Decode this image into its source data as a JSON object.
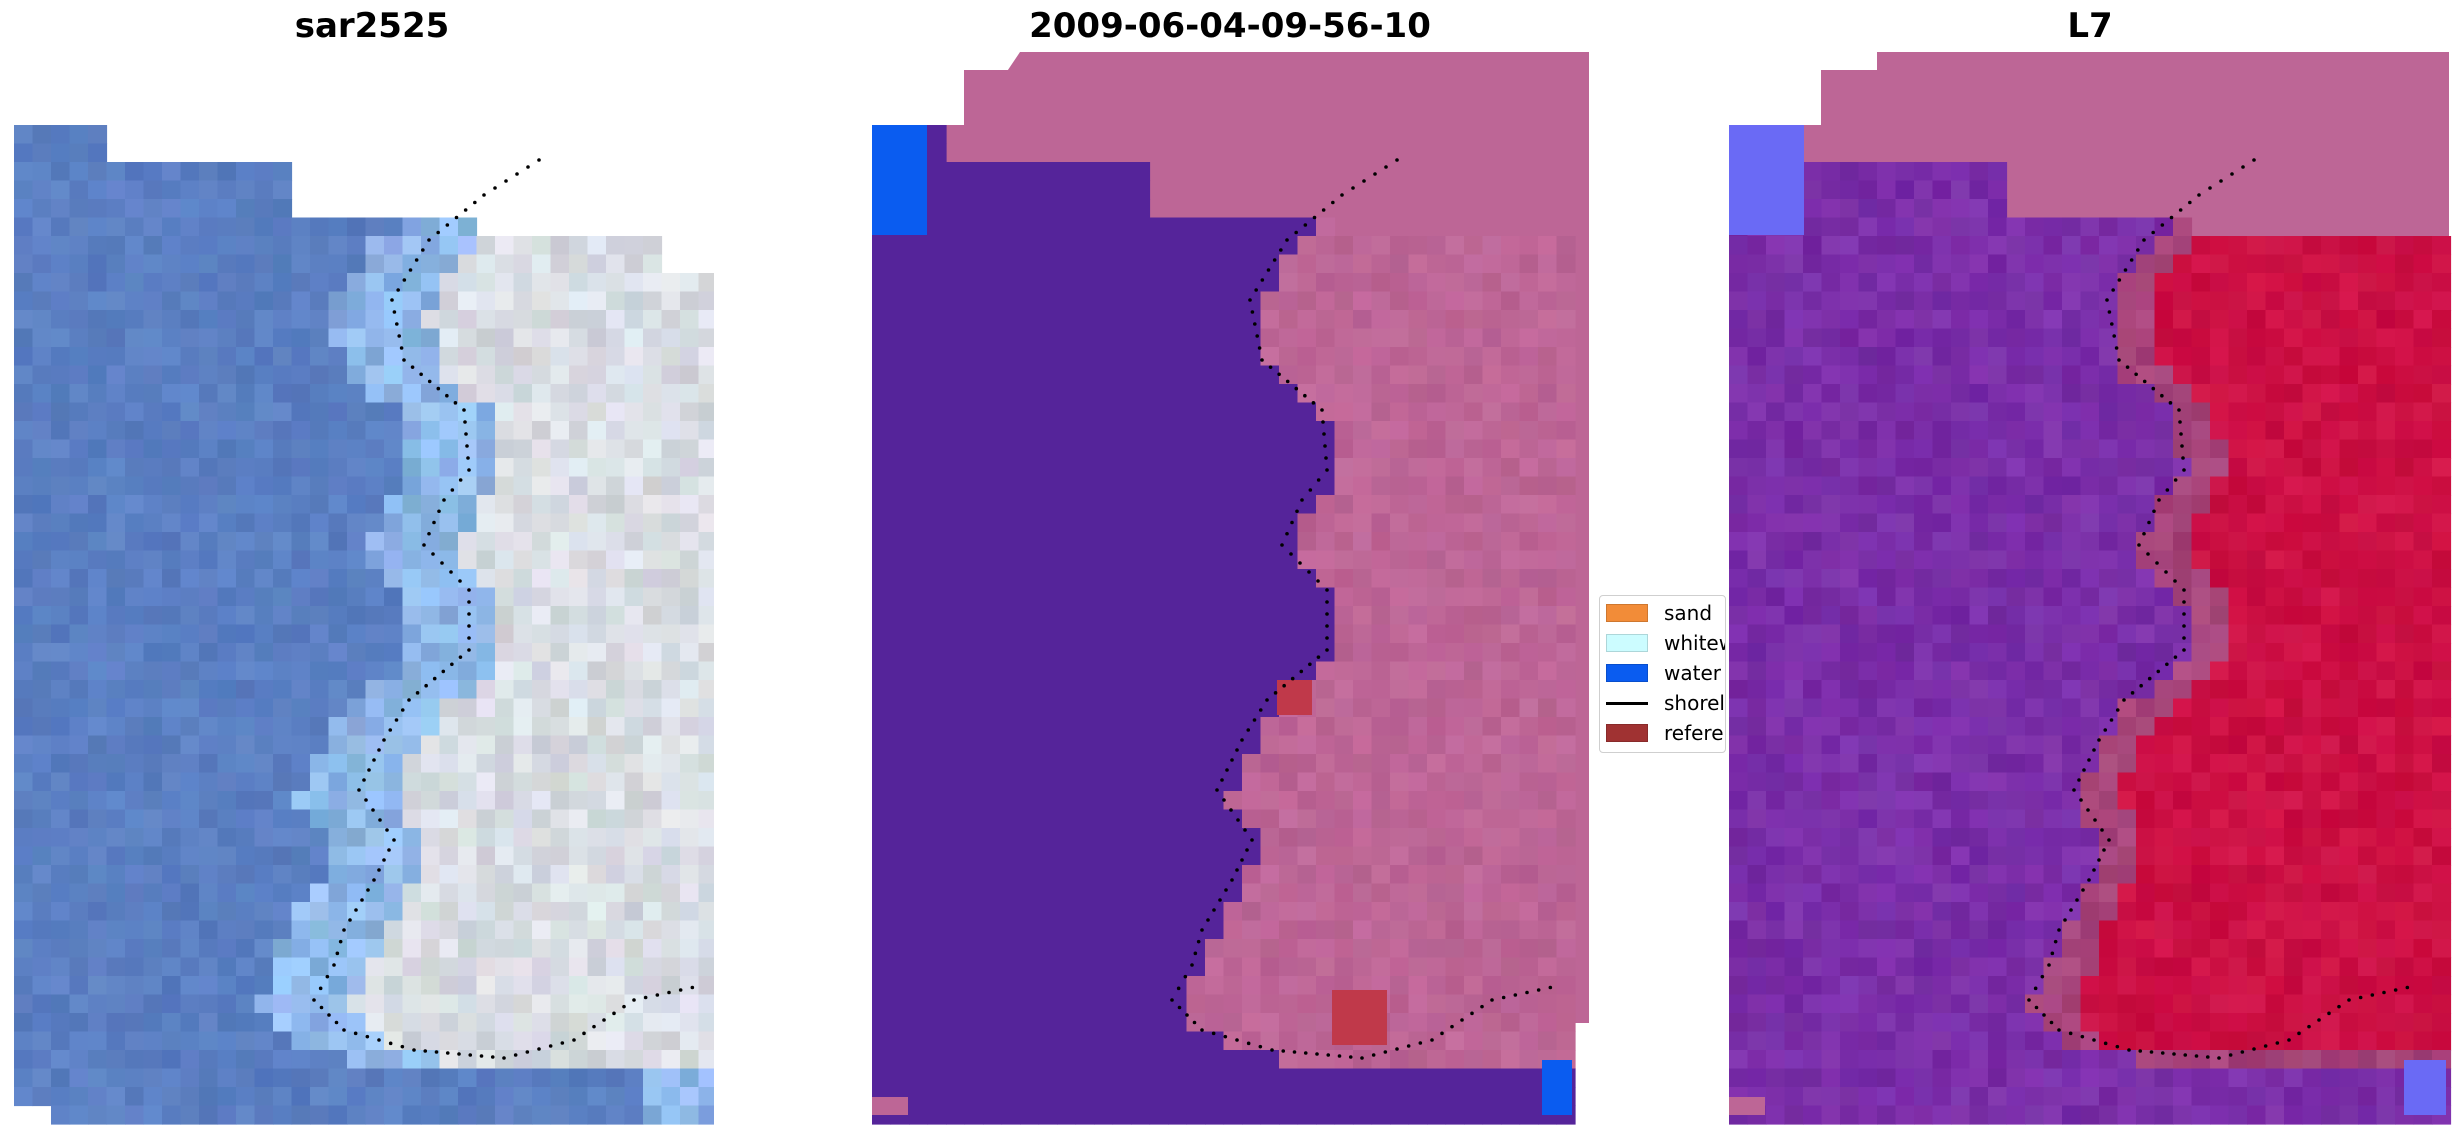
{
  "panels": [
    {
      "title": "sar2525",
      "kind": "rgb"
    },
    {
      "title": "2009-06-04-09-56-10",
      "kind": "classified"
    },
    {
      "title": "L7",
      "kind": "probability"
    }
  ],
  "legend": {
    "items": [
      {
        "label": "sand",
        "color": "#f28c38",
        "type": "patch"
      },
      {
        "label": "whitew",
        "color": "#ccfcff",
        "type": "patch"
      },
      {
        "label": "water",
        "color": "#0a5cf0",
        "type": "patch"
      },
      {
        "label": "shorel",
        "color": "#000000",
        "type": "line"
      },
      {
        "label": "referen",
        "color": "#a03232",
        "type": "patch"
      }
    ]
  },
  "colors": {
    "sea_rgb": "#5b7fc2",
    "shallow_rgb": "#8fb8e8",
    "land_rgb": "#d9dde3",
    "water_class": "#55249a",
    "land_class": "#bd6696",
    "nodata_class": "#bd6696",
    "water_prob": "#7a2ea8",
    "land_prob": "#cc1044",
    "shoreline": "#000000"
  }
}
